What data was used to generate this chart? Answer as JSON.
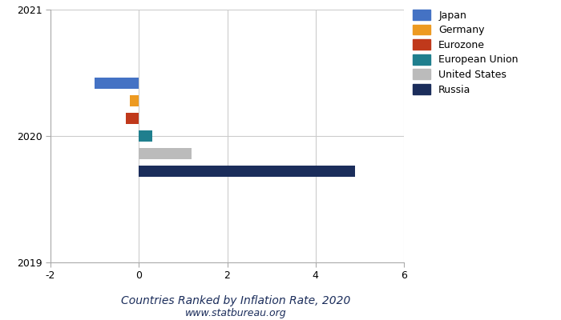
{
  "title": "Countries Ranked by Inflation Rate, 2020",
  "subtitle": "www.statbureau.org",
  "countries": [
    "Japan",
    "Germany",
    "Eurozone",
    "European Union",
    "United States",
    "Russia"
  ],
  "values": [
    -1.0,
    -0.2,
    -0.3,
    0.3,
    1.2,
    4.9
  ],
  "colors": [
    "#4472C4",
    "#ED9A21",
    "#C0391B",
    "#1F7F8E",
    "#BBBBBB",
    "#1B2D5B"
  ],
  "xlim": [
    -2,
    6
  ],
  "ylim": [
    2019,
    2021
  ],
  "yticks": [
    2019,
    2020,
    2021
  ],
  "xticks": [
    -2,
    0,
    2,
    4,
    6
  ],
  "bar_height": 0.09,
  "y_positions": [
    2020.42,
    2020.28,
    2020.14,
    2020.0,
    2019.86,
    2019.72
  ],
  "background_color": "#FFFFFF",
  "grid_color": "#CCCCCC",
  "title_fontsize": 10,
  "subtitle_fontsize": 9,
  "tick_fontsize": 9,
  "legend_fontsize": 9,
  "spine_color": "#AAAAAA"
}
